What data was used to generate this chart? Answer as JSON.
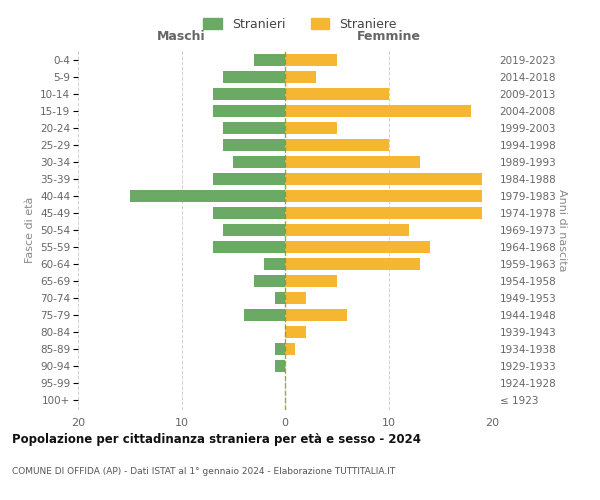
{
  "age_groups": [
    "100+",
    "95-99",
    "90-94",
    "85-89",
    "80-84",
    "75-79",
    "70-74",
    "65-69",
    "60-64",
    "55-59",
    "50-54",
    "45-49",
    "40-44",
    "35-39",
    "30-34",
    "25-29",
    "20-24",
    "15-19",
    "10-14",
    "5-9",
    "0-4"
  ],
  "birth_years": [
    "≤ 1923",
    "1924-1928",
    "1929-1933",
    "1934-1938",
    "1939-1943",
    "1944-1948",
    "1949-1953",
    "1954-1958",
    "1959-1963",
    "1964-1968",
    "1969-1973",
    "1974-1978",
    "1979-1983",
    "1984-1988",
    "1989-1993",
    "1994-1998",
    "1999-2003",
    "2004-2008",
    "2009-2013",
    "2014-2018",
    "2019-2023"
  ],
  "maschi": [
    0,
    0,
    1,
    1,
    0,
    4,
    1,
    3,
    2,
    7,
    6,
    7,
    15,
    7,
    5,
    6,
    6,
    7,
    7,
    6,
    3
  ],
  "femmine": [
    0,
    0,
    0,
    1,
    2,
    6,
    2,
    5,
    13,
    14,
    12,
    19,
    19,
    19,
    13,
    10,
    5,
    18,
    10,
    3,
    5
  ],
  "color_maschi": "#6aaa64",
  "color_femmine": "#f5b731",
  "title": "Popolazione per cittadinanza straniera per età e sesso - 2024",
  "subtitle": "COMUNE DI OFFIDA (AP) - Dati ISTAT al 1° gennaio 2024 - Elaborazione TUTTITALIA.IT",
  "xlabel_left": "Maschi",
  "xlabel_right": "Femmine",
  "ylabel_left": "Fasce di età",
  "ylabel_right": "Anni di nascita",
  "xlim": 20,
  "legend_stranieri": "Stranieri",
  "legend_straniere": "Straniere",
  "bg_color": "#ffffff",
  "grid_color": "#cccccc"
}
